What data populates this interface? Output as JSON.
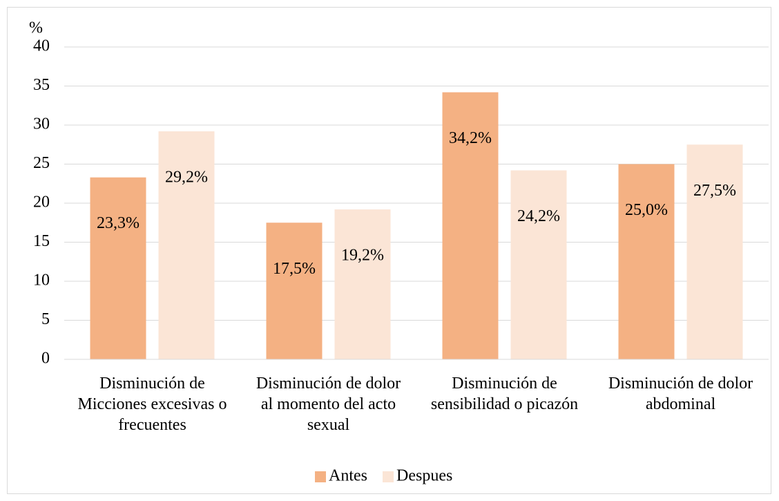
{
  "chart_data": {
    "type": "bar",
    "y_label": "%",
    "categories": [
      "Disminución de Micciones excesivas o frecuentes",
      "Disminución de dolor al momento del acto sexual",
      "Disminución de sensibilidad o picazón",
      "Disminución de dolor abdominal"
    ],
    "series": [
      {
        "name": "Antes",
        "color": "#f4b183",
        "values": [
          23.3,
          17.5,
          34.2,
          25.0
        ],
        "value_labels": [
          "23,3%",
          "17,5%",
          "34,2%",
          "25,0%"
        ]
      },
      {
        "name": "Despues",
        "color": "#fbe5d6",
        "values": [
          29.2,
          19.2,
          24.2,
          27.5
        ],
        "value_labels": [
          "29,2%",
          "19,2%",
          "24,2%",
          "27,5%"
        ]
      }
    ],
    "ylim": [
      0,
      40
    ],
    "yticks": [
      0,
      5,
      10,
      15,
      20,
      25,
      30,
      35,
      40
    ],
    "grid": true,
    "legend": "bottom"
  }
}
